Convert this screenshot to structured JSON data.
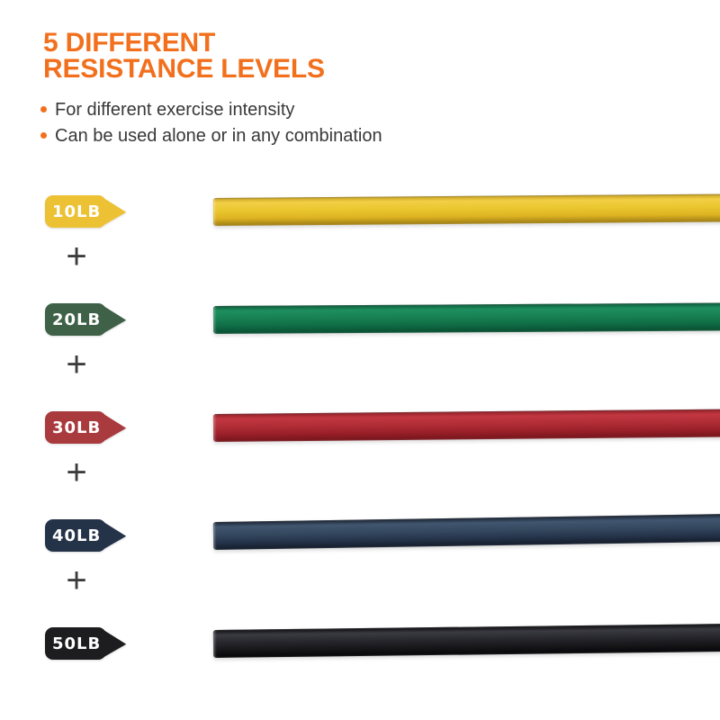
{
  "page": {
    "background": "#ffffff"
  },
  "header": {
    "title_line1": "5 DIFFERENT",
    "title_line2": "RESISTANCE LEVELS",
    "title_color": "#f2701d",
    "text_color": "#383838",
    "bullets": [
      "For different exercise intensity",
      "Can be used alone or in any combination"
    ]
  },
  "plus_symbol": "+",
  "bands": [
    {
      "label": "10LB",
      "color_name": "yellow",
      "badge_color": "#ecc133",
      "tube_gradient": [
        "#c7a122",
        "#f2cf45",
        "#eac62e",
        "#ddb222",
        "#9b7b13"
      ]
    },
    {
      "label": "20LB",
      "color_name": "green",
      "badge_color": "#3e6147",
      "tube_gradient": [
        "#0a5a39",
        "#1f8f5f",
        "#178052",
        "#0f6b44",
        "#084c30"
      ]
    },
    {
      "label": "30LB",
      "color_name": "red",
      "badge_color": "#a93a3e",
      "tube_gradient": [
        "#8e1f27",
        "#c23741",
        "#b02d36",
        "#991f28",
        "#73141b"
      ]
    },
    {
      "label": "40LB",
      "color_name": "navy",
      "badge_color": "#253349",
      "tube_gradient": [
        "#1a2332",
        "#41566f",
        "#34485f",
        "#25334a",
        "#131b29"
      ]
    },
    {
      "label": "50LB",
      "color_name": "black",
      "badge_color": "#1d1d1f",
      "tube_gradient": [
        "#0b0b0f",
        "#3a3a41",
        "#26262c",
        "#161619",
        "#050507"
      ]
    }
  ]
}
